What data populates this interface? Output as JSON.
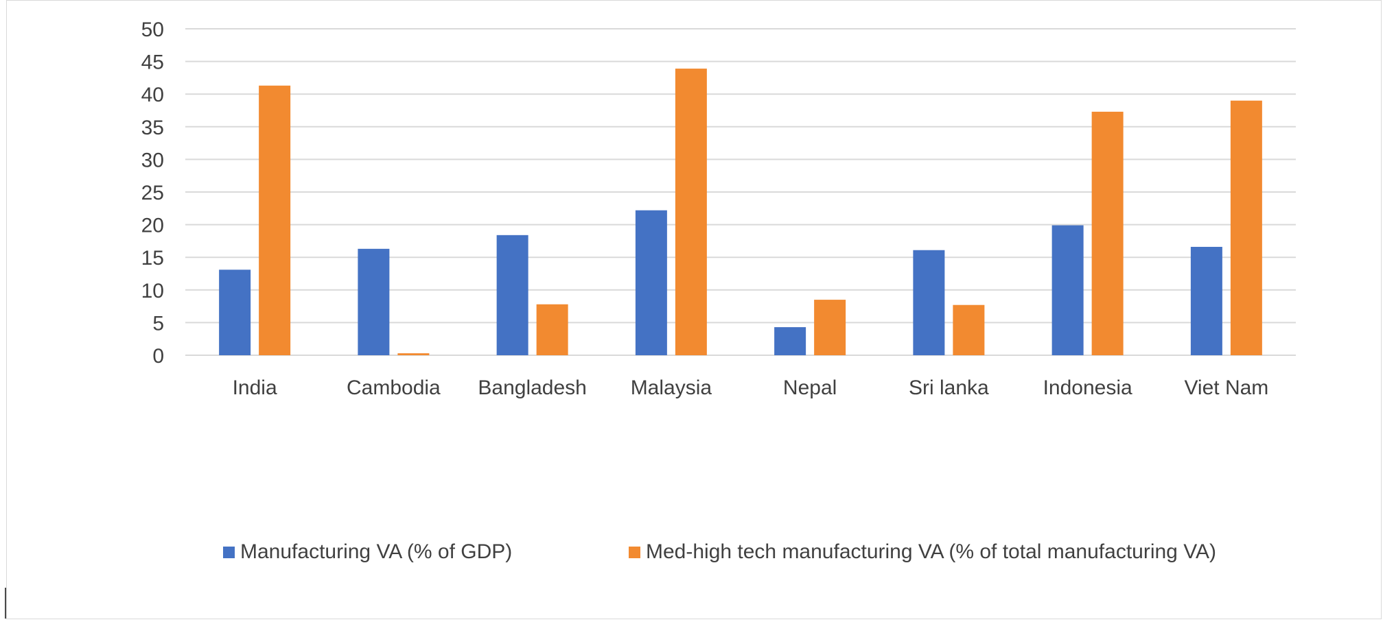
{
  "chart_data": {
    "type": "bar",
    "title": "",
    "xlabel": "",
    "ylabel": "",
    "ylim": [
      0,
      50
    ],
    "yticks": [
      0,
      5,
      10,
      15,
      20,
      25,
      30,
      35,
      40,
      45,
      50
    ],
    "grid": true,
    "legend_position": "bottom",
    "categories": [
      "India",
      "Cambodia",
      "Bangladesh",
      "Malaysia",
      "Nepal",
      "Sri lanka",
      "Indonesia",
      "Viet Nam"
    ],
    "series": [
      {
        "name": "Manufacturing VA (% of GDP)",
        "color": "#4472C4",
        "values": [
          13.1,
          16.3,
          18.4,
          22.2,
          4.3,
          16.1,
          19.9,
          16.6
        ]
      },
      {
        "name": "Med-high tech manufacturing VA (% of total manufacturing VA)",
        "color": "#F28A30",
        "values": [
          41.3,
          0.3,
          7.8,
          43.9,
          8.5,
          7.7,
          37.3,
          39.0
        ]
      }
    ]
  }
}
